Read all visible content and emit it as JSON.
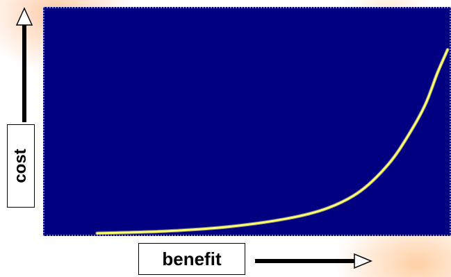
{
  "chart_data": {
    "type": "line",
    "title": "",
    "xlabel": "benefit",
    "ylabel": "cost",
    "background_color": "#000080",
    "line_color": "#ffff66",
    "grid": false,
    "legend": "none",
    "xlim": [
      0,
      1
    ],
    "ylim": [
      0,
      1
    ],
    "series": [
      {
        "values": [
          {
            "x": 0.13,
            "y": 0.0
          },
          {
            "x": 0.3,
            "y": 0.01
          },
          {
            "x": 0.45,
            "y": 0.03
          },
          {
            "x": 0.6,
            "y": 0.07
          },
          {
            "x": 0.7,
            "y": 0.12
          },
          {
            "x": 0.78,
            "y": 0.2
          },
          {
            "x": 0.85,
            "y": 0.33
          },
          {
            "x": 0.9,
            "y": 0.47
          },
          {
            "x": 0.94,
            "y": 0.61
          },
          {
            "x": 0.97,
            "y": 0.76
          },
          {
            "x": 0.995,
            "y": 0.87
          }
        ]
      }
    ]
  }
}
